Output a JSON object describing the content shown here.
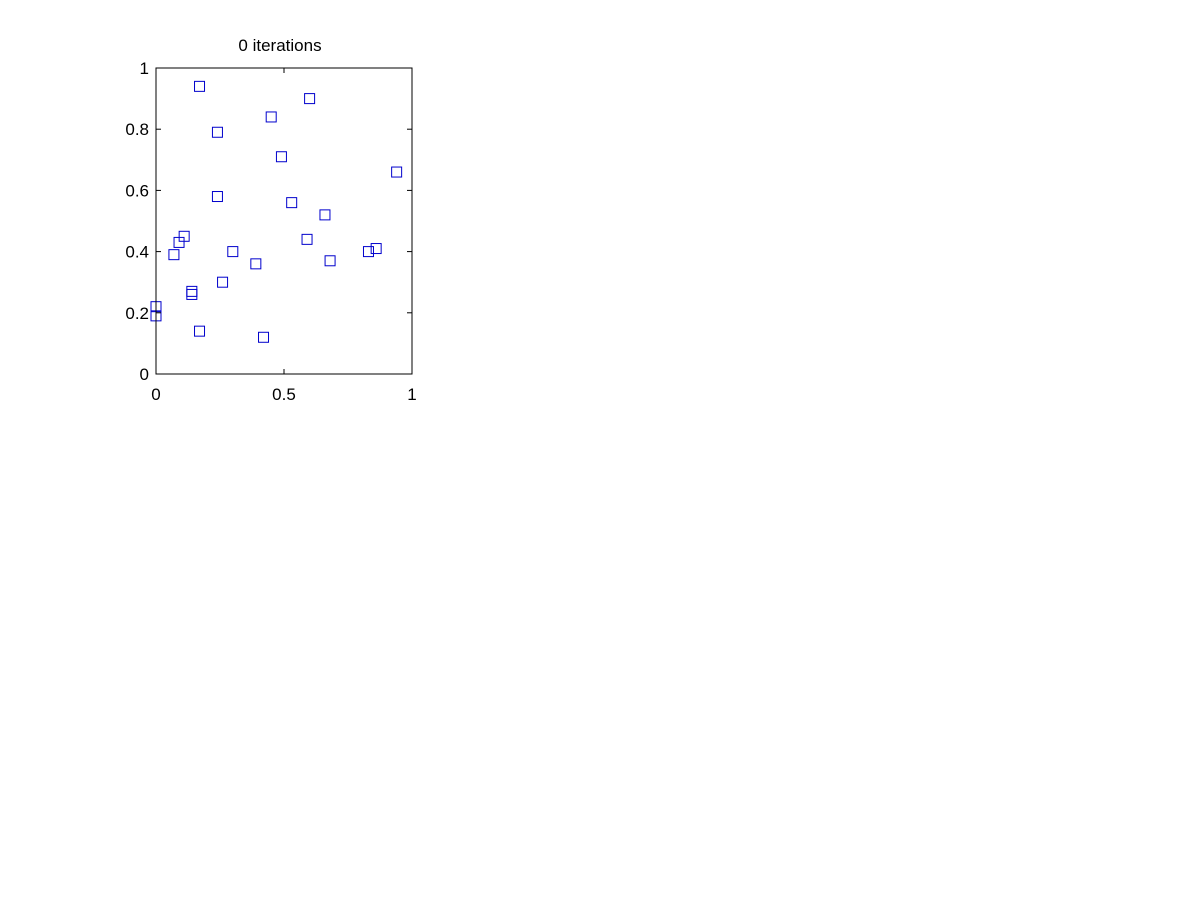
{
  "chart_data": {
    "type": "scatter",
    "title": "0 iterations",
    "xlabel": "",
    "ylabel": "",
    "xlim": [
      0,
      1
    ],
    "ylim": [
      0,
      1
    ],
    "xticks": [
      "0",
      "0.5",
      "1"
    ],
    "yticks": [
      "0",
      "0.2",
      "0.4",
      "0.6",
      "0.8",
      "1"
    ],
    "grid": false,
    "marker": "square",
    "marker_color": "#0000cc",
    "points": [
      {
        "x": 0.17,
        "y": 0.94
      },
      {
        "x": 0.6,
        "y": 0.9
      },
      {
        "x": 0.45,
        "y": 0.84
      },
      {
        "x": 0.24,
        "y": 0.79
      },
      {
        "x": 0.49,
        "y": 0.71
      },
      {
        "x": 0.94,
        "y": 0.66
      },
      {
        "x": 0.24,
        "y": 0.58
      },
      {
        "x": 0.53,
        "y": 0.56
      },
      {
        "x": 0.66,
        "y": 0.52
      },
      {
        "x": 0.11,
        "y": 0.45
      },
      {
        "x": 0.59,
        "y": 0.44
      },
      {
        "x": 0.09,
        "y": 0.43
      },
      {
        "x": 0.3,
        "y": 0.4
      },
      {
        "x": 0.83,
        "y": 0.4
      },
      {
        "x": 0.86,
        "y": 0.41
      },
      {
        "x": 0.07,
        "y": 0.39
      },
      {
        "x": 0.68,
        "y": 0.37
      },
      {
        "x": 0.39,
        "y": 0.36
      },
      {
        "x": 0.26,
        "y": 0.3
      },
      {
        "x": 0.14,
        "y": 0.27
      },
      {
        "x": 0.14,
        "y": 0.26
      },
      {
        "x": 0.0,
        "y": 0.22
      },
      {
        "x": 0.0,
        "y": 0.19
      },
      {
        "x": 0.17,
        "y": 0.14
      },
      {
        "x": 0.42,
        "y": 0.12
      }
    ]
  }
}
